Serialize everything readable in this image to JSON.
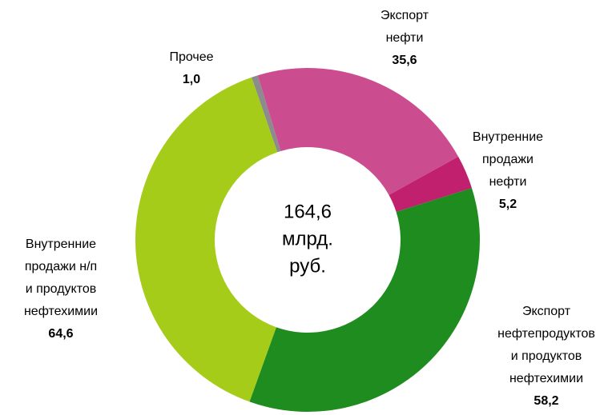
{
  "chart_data": {
    "type": "donut",
    "categories": [
      "Прочее",
      "Экспорт\nнефти",
      "Внутренние\nпродажи\nнефти",
      "Экспорт\nнефтепродуктов\nи продуктов\nнефтехимии",
      "Внутренние\nпродажи н/п\nи продуктов\nнефтехимии"
    ],
    "values": [
      1.0,
      35.6,
      5.2,
      58.2,
      64.6
    ],
    "value_labels": [
      "1,0",
      "35,6",
      "5,2",
      "58,2",
      "64,6"
    ],
    "colors": [
      "#8c8c8c",
      "#cc4d8f",
      "#c0206e",
      "#1e8c1e",
      "#a6cc1a"
    ],
    "center_text": [
      "164,6",
      "млрд.",
      "руб."
    ]
  }
}
